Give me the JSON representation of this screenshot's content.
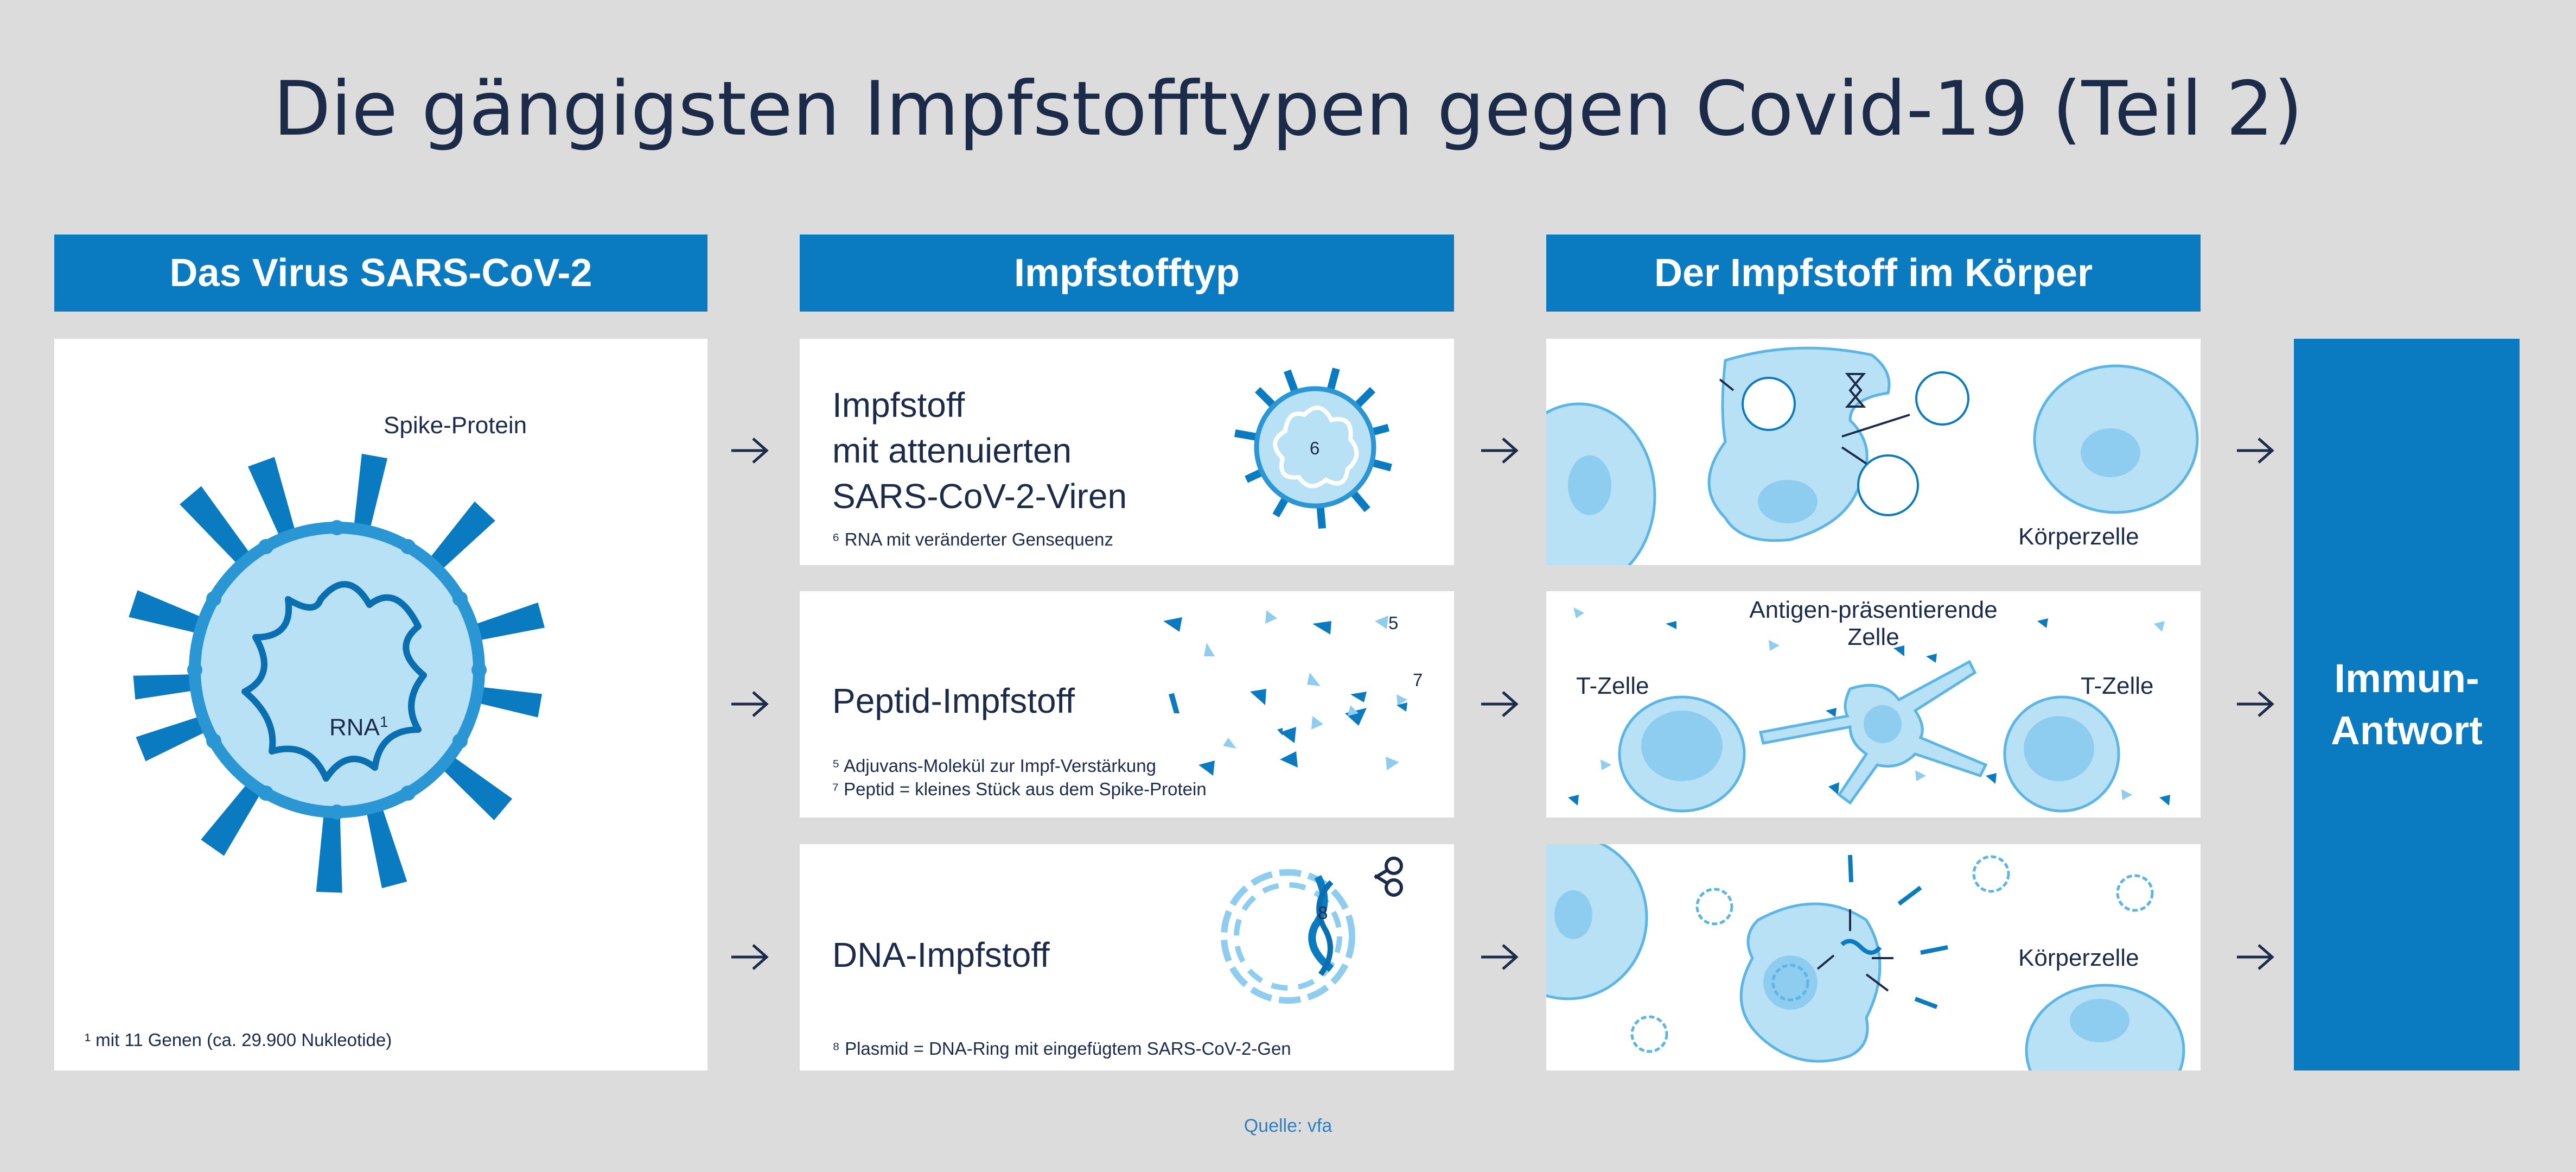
{
  "title": "Die gängigsten Impfstofftypen gegen Covid-19 (Teil 2)",
  "columns": {
    "virus": "Das Virus SARS-CoV-2",
    "type": "Impfstofftyp",
    "body": "Der Impfstoff im Körper"
  },
  "virus_panel": {
    "spike_label": "Spike-Protein",
    "rna_label": "RNA",
    "rna_sup": "1",
    "footnote": "¹ mit 11 Genen (ca. 29.900 Nukleotide)"
  },
  "rows": [
    {
      "name_lines": [
        "Impfstoff",
        "mit attenuierten",
        "SARS-CoV-2-Viren"
      ],
      "marker": "6",
      "footnotes": [
        "⁶ RNA mit veränderter Gensequenz"
      ]
    },
    {
      "name_lines": [
        "Peptid-Impfstoff"
      ],
      "markers": [
        "5",
        "7"
      ],
      "footnotes": [
        "⁵ Adjuvans-Molekül zur Impf-Verstärkung",
        "⁷ Peptid = kleines Stück aus dem Spike-Protein"
      ]
    },
    {
      "name_lines": [
        "DNA-Impfstoff"
      ],
      "marker": "8",
      "footnotes": [
        "⁸ Plasmid = DNA-Ring mit eingefügtem SARS-CoV-2-Gen"
      ]
    }
  ],
  "body_panels": {
    "row1_label": "Körperzelle",
    "row2_label_line1": "Antigen-präsentierende",
    "row2_label_line2": "Zelle",
    "row2_tcell_left": "T-Zelle",
    "row2_tcell_right": "T-Zelle",
    "row3_label": "Körperzelle"
  },
  "result": {
    "line1": "Immun-",
    "line2": "Antwort"
  },
  "source": "Quelle: vfa",
  "colors": {
    "background": "#dcdcdc",
    "brand_blue": "#0a7ac1",
    "cell_fill": "#b9e1f6",
    "cell_stroke": "#5bb6e6",
    "text": "#1c2b4a"
  }
}
